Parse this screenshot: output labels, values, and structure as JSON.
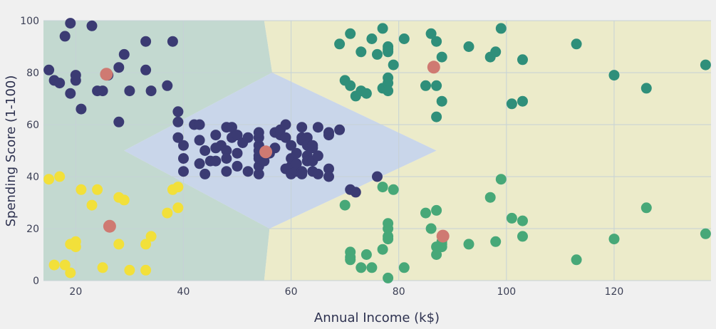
{
  "chart_data": {
    "type": "scatter",
    "title": "",
    "xlabel": "Annual Income (k$)",
    "ylabel": "Spending Score (1-100)",
    "xlim": [
      14,
      138
    ],
    "ylim": [
      0,
      100
    ],
    "xticks": [
      20,
      40,
      60,
      80,
      100,
      120
    ],
    "yticks": [
      0,
      20,
      40,
      60,
      80,
      100
    ],
    "grid": true,
    "colors": {
      "background": "#f0f0f0",
      "grid": "#c6d2d6",
      "region_left": "#c3d9d0",
      "region_right": "#ecebca",
      "region_center": "#c9d6ea",
      "cluster_navy": "#3b3b73",
      "cluster_teal": "#2f8f7a",
      "cluster_green": "#47a878",
      "cluster_yellow": "#f2e03a",
      "centroid": "#cf7a72"
    },
    "regions": [
      {
        "color": "region_left",
        "polygon": [
          [
            14,
            0
          ],
          [
            14,
            100
          ],
          [
            55,
            100
          ],
          [
            56.5,
            80
          ],
          [
            29,
            50
          ],
          [
            56,
            20
          ],
          [
            55,
            0
          ]
        ]
      },
      {
        "color": "region_right",
        "polygon": [
          [
            55,
            100
          ],
          [
            138,
            100
          ],
          [
            138,
            0
          ],
          [
            55,
            0
          ],
          [
            56,
            20
          ],
          [
            87,
            50
          ],
          [
            56.5,
            80
          ]
        ]
      },
      {
        "color": "region_center",
        "polygon": [
          [
            56.5,
            80
          ],
          [
            87,
            50
          ],
          [
            56,
            20
          ],
          [
            29,
            50
          ]
        ]
      }
    ],
    "series": [
      {
        "color": "cluster_navy",
        "points": [
          [
            15,
            81
          ],
          [
            16,
            77
          ],
          [
            17,
            76
          ],
          [
            18,
            94
          ],
          [
            19,
            99
          ],
          [
            19,
            72
          ],
          [
            20,
            77
          ],
          [
            20,
            79
          ],
          [
            21,
            66
          ],
          [
            23,
            98
          ],
          [
            24,
            73
          ],
          [
            25,
            73
          ],
          [
            26,
            79
          ],
          [
            28,
            82
          ],
          [
            28,
            61
          ],
          [
            29,
            87
          ],
          [
            30,
            73
          ],
          [
            33,
            92
          ],
          [
            33,
            81
          ],
          [
            34,
            73
          ],
          [
            37,
            75
          ],
          [
            38,
            92
          ],
          [
            39,
            61
          ],
          [
            39,
            65
          ],
          [
            39,
            55
          ],
          [
            40,
            42
          ],
          [
            40,
            47
          ],
          [
            40,
            52
          ],
          [
            42,
            60
          ],
          [
            43,
            60
          ],
          [
            43,
            54
          ],
          [
            43,
            45
          ],
          [
            44,
            41
          ],
          [
            44,
            50
          ],
          [
            45,
            46
          ],
          [
            46,
            56
          ],
          [
            46,
            51
          ],
          [
            46,
            46
          ],
          [
            47,
            52
          ],
          [
            48,
            59
          ],
          [
            48,
            50
          ],
          [
            48,
            47
          ],
          [
            48,
            42
          ],
          [
            49,
            59
          ],
          [
            49,
            55
          ],
          [
            50,
            56
          ],
          [
            50,
            49
          ],
          [
            50,
            44
          ],
          [
            51,
            53
          ],
          [
            52,
            55
          ],
          [
            52,
            42
          ],
          [
            54,
            41
          ],
          [
            54,
            44
          ],
          [
            54,
            47
          ],
          [
            54,
            48
          ],
          [
            54,
            50
          ],
          [
            54,
            52
          ],
          [
            54,
            55
          ],
          [
            54,
            57
          ],
          [
            55,
            46
          ],
          [
            56,
            49
          ],
          [
            57,
            51
          ],
          [
            57,
            57
          ],
          [
            58,
            56
          ],
          [
            58,
            58
          ],
          [
            59,
            60
          ],
          [
            59,
            55
          ],
          [
            59,
            43
          ],
          [
            60,
            52
          ],
          [
            60,
            44
          ],
          [
            60,
            47
          ],
          [
            60,
            41
          ],
          [
            61,
            42
          ],
          [
            61,
            45
          ],
          [
            61,
            49
          ],
          [
            62,
            59
          ],
          [
            62,
            55
          ],
          [
            62,
            54
          ],
          [
            62,
            42
          ],
          [
            62,
            41
          ],
          [
            63,
            55
          ],
          [
            63,
            52
          ],
          [
            63,
            48
          ],
          [
            63,
            46
          ],
          [
            64,
            51
          ],
          [
            64,
            52
          ],
          [
            64,
            46
          ],
          [
            64,
            42
          ],
          [
            65,
            59
          ],
          [
            65,
            48
          ],
          [
            65,
            41
          ],
          [
            67,
            56
          ],
          [
            67,
            57
          ],
          [
            67,
            43
          ],
          [
            67,
            40
          ],
          [
            69,
            58
          ],
          [
            71,
            35
          ],
          [
            72,
            34
          ],
          [
            76,
            40
          ]
        ]
      },
      {
        "color": "cluster_teal",
        "points": [
          [
            69,
            91
          ],
          [
            70,
            77
          ],
          [
            71,
            95
          ],
          [
            71,
            75
          ],
          [
            72,
            71
          ],
          [
            73,
            88
          ],
          [
            73,
            73
          ],
          [
            74,
            72
          ],
          [
            75,
            93
          ],
          [
            76,
            87
          ],
          [
            77,
            97
          ],
          [
            77,
            74
          ],
          [
            78,
            90
          ],
          [
            78,
            89
          ],
          [
            78,
            88
          ],
          [
            78,
            78
          ],
          [
            78,
            76
          ],
          [
            78,
            73
          ],
          [
            79,
            83
          ],
          [
            81,
            93
          ],
          [
            85,
            75
          ],
          [
            86,
            95
          ],
          [
            87,
            92
          ],
          [
            87,
            75
          ],
          [
            87,
            63
          ],
          [
            88,
            69
          ],
          [
            88,
            86
          ],
          [
            93,
            90
          ],
          [
            97,
            86
          ],
          [
            98,
            88
          ],
          [
            99,
            97
          ],
          [
            101,
            68
          ],
          [
            103,
            85
          ],
          [
            103,
            69
          ],
          [
            113,
            91
          ],
          [
            120,
            79
          ],
          [
            126,
            74
          ],
          [
            137,
            83
          ]
        ]
      },
      {
        "color": "cluster_green",
        "points": [
          [
            70,
            29
          ],
          [
            71,
            11
          ],
          [
            71,
            9
          ],
          [
            71,
            8
          ],
          [
            73,
            5
          ],
          [
            74,
            10
          ],
          [
            75,
            5
          ],
          [
            77,
            12
          ],
          [
            77,
            36
          ],
          [
            78,
            22
          ],
          [
            78,
            17
          ],
          [
            78,
            20
          ],
          [
            78,
            16
          ],
          [
            78,
            1
          ],
          [
            79,
            35
          ],
          [
            81,
            5
          ],
          [
            85,
            26
          ],
          [
            86,
            20
          ],
          [
            87,
            27
          ],
          [
            87,
            13
          ],
          [
            87,
            10
          ],
          [
            88,
            13
          ],
          [
            88,
            15
          ],
          [
            88,
            14
          ],
          [
            93,
            14
          ],
          [
            97,
            32
          ],
          [
            98,
            15
          ],
          [
            99,
            39
          ],
          [
            101,
            24
          ],
          [
            103,
            23
          ],
          [
            103,
            17
          ],
          [
            113,
            8
          ],
          [
            120,
            16
          ],
          [
            126,
            28
          ],
          [
            137,
            18
          ]
        ]
      },
      {
        "color": "cluster_yellow",
        "points": [
          [
            15,
            39
          ],
          [
            16,
            6
          ],
          [
            17,
            40
          ],
          [
            18,
            6
          ],
          [
            19,
            3
          ],
          [
            19,
            14
          ],
          [
            20,
            15
          ],
          [
            20,
            13
          ],
          [
            21,
            35
          ],
          [
            23,
            29
          ],
          [
            24,
            35
          ],
          [
            25,
            5
          ],
          [
            28,
            14
          ],
          [
            28,
            32
          ],
          [
            29,
            31
          ],
          [
            30,
            4
          ],
          [
            33,
            4
          ],
          [
            33,
            14
          ],
          [
            34,
            17
          ],
          [
            37,
            26
          ],
          [
            38,
            35
          ],
          [
            39,
            36
          ],
          [
            39,
            28
          ]
        ]
      },
      {
        "color": "centroid",
        "points": [
          [
            25.7,
            79.4
          ],
          [
            26.3,
            20.9
          ],
          [
            55.3,
            49.5
          ],
          [
            86.5,
            82.1
          ],
          [
            88.2,
            17.1
          ]
        ]
      }
    ]
  }
}
